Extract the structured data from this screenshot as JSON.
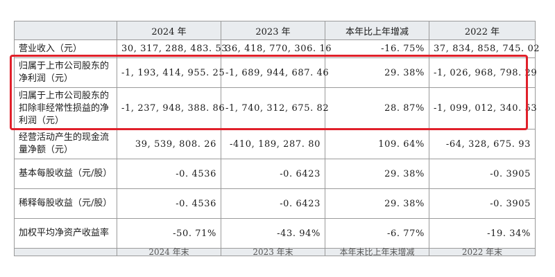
{
  "table": {
    "headers": [
      "",
      "2024 年",
      "2023 年",
      "本年比上年增减",
      "2022 年"
    ],
    "rows": [
      {
        "label": "营业收入（元）",
        "values": [
          "30, 317, 288, 483. 53",
          "36, 418, 770, 306. 16",
          "-16. 75%",
          "37, 834, 858, 745. 02"
        ]
      },
      {
        "label": "归属于上市公司股东的净利润（元）",
        "values": [
          "-1, 193, 414, 955. 25",
          "-1, 689, 944, 687. 46",
          "29. 38%",
          "-1, 026, 968, 798. 29"
        ]
      },
      {
        "label": "归属于上市公司股东的扣除非经常性损益的净利润（元）",
        "values": [
          "-1, 237, 948, 388. 86",
          "-1, 740, 312, 675. 82",
          "28. 87%",
          "-1, 099, 012, 340. 53"
        ]
      },
      {
        "label": "经营活动产生的现金流量净额（元）",
        "values": [
          "39, 539, 808. 26",
          "-410, 189, 287. 80",
          "109. 64%",
          "-64, 328, 675. 93"
        ]
      },
      {
        "label": "基本每股收益（元/股）",
        "values": [
          "-0. 4536",
          "-0. 6423",
          "29. 38%",
          "-0. 3905"
        ]
      },
      {
        "label": "稀释每股收益（元/股）",
        "values": [
          "-0. 4536",
          "-0. 6423",
          "29. 38%",
          "-0. 3905"
        ]
      },
      {
        "label": "加权平均净资产收益率",
        "values": [
          "-50. 71%",
          "-43. 94%",
          "-6. 77%",
          "-19. 34%"
        ]
      }
    ],
    "footer_headers": [
      "",
      "2024 年末",
      "2023 年末",
      "本年末比上年末增减",
      "2022 年末"
    ]
  },
  "highlight": {
    "color": "#e0202a",
    "rows_highlighted": [
      2,
      3
    ]
  }
}
